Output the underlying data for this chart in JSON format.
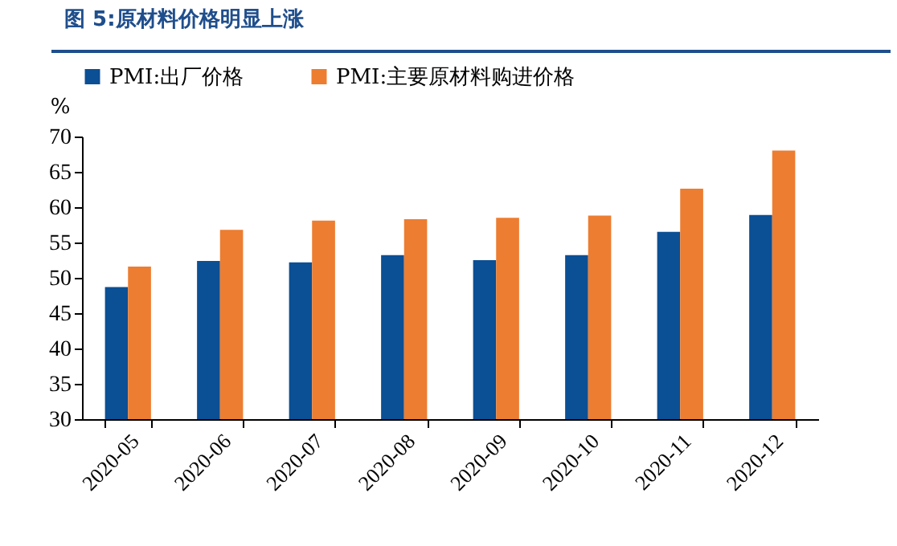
{
  "chart_data": {
    "type": "bar",
    "title": "图 5:原材料价格明显上涨",
    "ylabel": "%",
    "categories": [
      "2020-05",
      "2020-06",
      "2020-07",
      "2020-08",
      "2020-09",
      "2020-10",
      "2020-11",
      "2020-12"
    ],
    "series": [
      {
        "name": "PMI:出厂价格",
        "color": "#0b4f94",
        "values": [
          48.7,
          52.4,
          52.2,
          53.2,
          52.5,
          53.2,
          56.5,
          58.9
        ]
      },
      {
        "name": "PMI:主要原材料购进价格",
        "color": "#ed7d31",
        "values": [
          51.6,
          56.8,
          58.1,
          58.3,
          58.5,
          58.8,
          62.6,
          68.0
        ]
      }
    ],
    "ylim": [
      30,
      70
    ],
    "yticks": [
      30,
      35,
      40,
      45,
      50,
      55,
      60,
      65,
      70
    ],
    "legend": "top"
  }
}
